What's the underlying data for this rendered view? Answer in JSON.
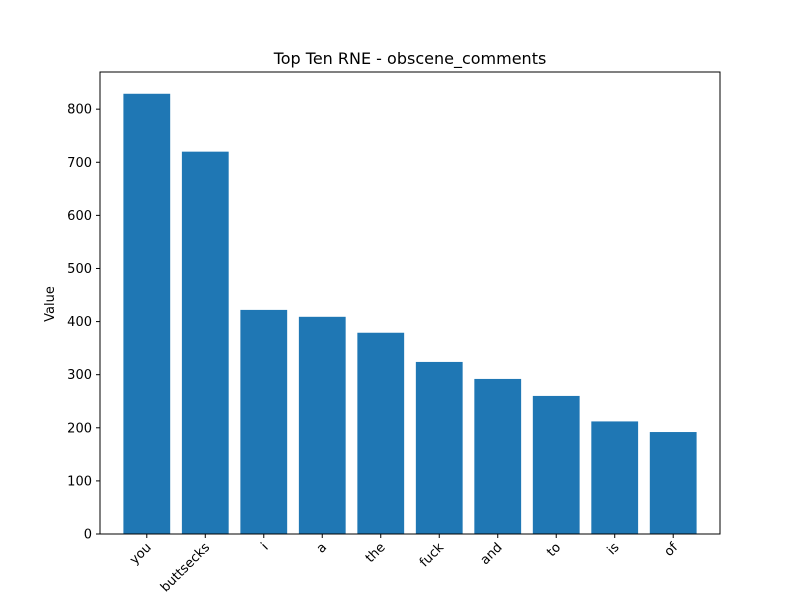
{
  "chart_data": {
    "type": "bar",
    "title": "Top Ten RNE - obscene_comments",
    "xlabel": "",
    "ylabel": "Value",
    "categories": [
      "you",
      "buttsecks",
      "i",
      "a",
      "the",
      "fuck",
      "and",
      "to",
      "is",
      "of"
    ],
    "values": [
      829,
      720,
      422,
      409,
      379,
      324,
      292,
      260,
      212,
      192
    ],
    "ylim": [
      0,
      870
    ],
    "yticks": [
      0,
      100,
      200,
      300,
      400,
      500,
      600,
      700,
      800
    ],
    "grid": false,
    "legend": "none",
    "bar_color": "#1f77b4",
    "xtick_rotation_degrees": 45
  }
}
